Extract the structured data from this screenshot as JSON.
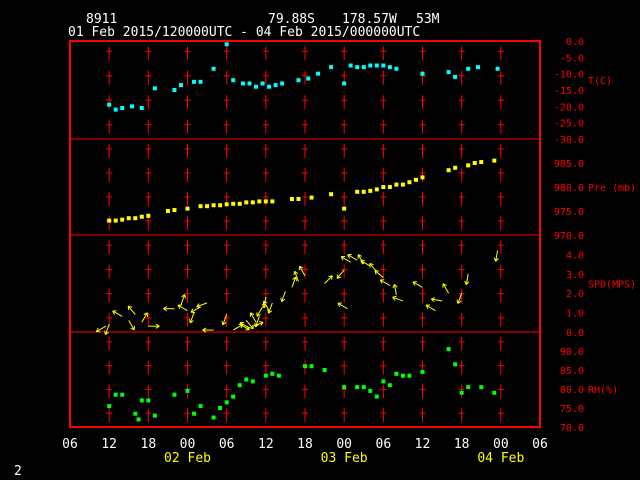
{
  "header": {
    "station": "8911",
    "lat": "79.88S",
    "lon": "178.57W",
    "elev": "53M",
    "range": "01 Feb 2015/120000UTC - 04 Feb 2015/000000UTC"
  },
  "footer": {
    "page": "2"
  },
  "colors": {
    "text": "#ffffff",
    "frame": "#ff0000",
    "label": "#ff0000",
    "date": "#ffff00",
    "temp": "#00ffff",
    "pres": "#ffff00",
    "wind": "#ffff00",
    "rh": "#00ff00"
  },
  "chart_data": {
    "type": "scatter",
    "x_ticks": [
      "06",
      "12",
      "18",
      "00",
      "06",
      "12",
      "18",
      "00",
      "06",
      "12",
      "18",
      "00",
      "06"
    ],
    "day_labels": [
      "02 Feb",
      "03 Feb",
      "04 Feb"
    ],
    "panels": [
      {
        "key": "temp",
        "label": "T(C)",
        "ylim": [
          -30,
          0
        ],
        "yticks": [
          "0.0",
          "-5.0",
          "-10.0",
          "-15.0",
          "-20.0",
          "-25.0",
          "-30.0"
        ],
        "points": [
          [
            12,
            -19.5
          ],
          [
            13,
            -21
          ],
          [
            14,
            -20.5
          ],
          [
            15.5,
            -20
          ],
          [
            17,
            -20.5
          ],
          [
            19,
            -14.5
          ],
          [
            22,
            -15
          ],
          [
            23,
            -13.5
          ],
          [
            25,
            -12.5
          ],
          [
            26,
            -12.5
          ],
          [
            28,
            -8.5
          ],
          [
            30,
            -1
          ],
          [
            31,
            -12
          ],
          [
            32.5,
            -13
          ],
          [
            33.5,
            -13
          ],
          [
            34.5,
            -14
          ],
          [
            35.5,
            -13
          ],
          [
            36.5,
            -14
          ],
          [
            37.5,
            -13.5
          ],
          [
            38.5,
            -13
          ],
          [
            41,
            -12
          ],
          [
            42.5,
            -11.5
          ],
          [
            44,
            -10
          ],
          [
            46,
            -8
          ],
          [
            48,
            -13
          ],
          [
            49,
            -7.5
          ],
          [
            50,
            -8
          ],
          [
            51,
            -8
          ],
          [
            52,
            -7.5
          ],
          [
            53,
            -7.5
          ],
          [
            54,
            -7.5
          ],
          [
            55,
            -8
          ],
          [
            56,
            -8.5
          ],
          [
            60,
            -10
          ],
          [
            64,
            -9.5
          ],
          [
            65,
            -11
          ],
          [
            67,
            -8.5
          ],
          [
            68.5,
            -8
          ],
          [
            71.5,
            -8.5
          ]
        ]
      },
      {
        "key": "pres",
        "label": "Pre (mb)",
        "ylim": [
          970,
          990
        ],
        "yticks": [
          "985.0",
          "980.0",
          "975.0",
          "970.0"
        ],
        "points": [
          [
            12,
            973
          ],
          [
            13,
            973
          ],
          [
            14,
            973.2
          ],
          [
            15,
            973.5
          ],
          [
            16,
            973.5
          ],
          [
            17,
            973.8
          ],
          [
            18,
            974
          ],
          [
            21,
            975
          ],
          [
            22,
            975.2
          ],
          [
            24,
            975.5
          ],
          [
            26,
            976
          ],
          [
            27,
            976
          ],
          [
            28,
            976.2
          ],
          [
            29,
            976.2
          ],
          [
            30,
            976.4
          ],
          [
            31,
            976.5
          ],
          [
            32,
            976.5
          ],
          [
            33,
            976.8
          ],
          [
            34,
            976.8
          ],
          [
            35,
            977
          ],
          [
            36,
            977
          ],
          [
            37,
            977
          ],
          [
            40,
            977.5
          ],
          [
            41,
            977.5
          ],
          [
            43,
            977.8
          ],
          [
            46,
            978.5
          ],
          [
            48,
            975.5
          ],
          [
            50,
            979
          ],
          [
            51,
            979
          ],
          [
            52,
            979.2
          ],
          [
            53,
            979.5
          ],
          [
            54,
            980
          ],
          [
            55,
            980
          ],
          [
            56,
            980.5
          ],
          [
            57,
            980.5
          ],
          [
            58,
            981
          ],
          [
            59,
            981.5
          ],
          [
            60,
            982
          ],
          [
            64,
            983.5
          ],
          [
            65,
            984
          ],
          [
            67,
            984.5
          ],
          [
            68,
            985
          ],
          [
            69,
            985.2
          ],
          [
            71,
            985.5
          ]
        ]
      },
      {
        "key": "wind",
        "label": "SPD(MPS)",
        "ylim": [
          0,
          5
        ],
        "yticks": [
          "4.0",
          "3.0",
          "2.0",
          "1.0",
          "0.0"
        ],
        "points": [
          [
            11.5,
            0.3,
            240
          ],
          [
            12,
            0.4,
            200
          ],
          [
            14,
            0.8,
            300
          ],
          [
            15,
            0.6,
            150
          ],
          [
            16,
            0.9,
            320
          ],
          [
            17,
            0.5,
            30
          ],
          [
            18,
            0.3,
            90
          ],
          [
            22,
            1.2,
            270
          ],
          [
            23,
            1.4,
            20
          ],
          [
            24,
            1.1,
            300
          ],
          [
            25,
            1.0,
            200
          ],
          [
            26,
            1.3,
            240
          ],
          [
            27,
            1.5,
            250
          ],
          [
            28,
            0.1,
            270
          ],
          [
            31,
            0.1,
            60
          ],
          [
            32,
            0.4,
            120
          ],
          [
            33,
            0.6,
            140
          ],
          [
            33.5,
            0.2,
            300
          ],
          [
            34,
            0.3,
            70
          ],
          [
            34.5,
            0.5,
            330
          ],
          [
            35,
            0.8,
            200
          ],
          [
            35.5,
            1.3,
            210
          ],
          [
            36,
            1.8,
            190
          ],
          [
            36.5,
            1.1,
            330
          ],
          [
            37,
            1.5,
            200
          ],
          [
            39,
            2.1,
            200
          ],
          [
            40,
            2.3,
            20
          ],
          [
            41,
            2.6,
            340
          ],
          [
            42,
            2.9,
            330
          ],
          [
            45,
            2.5,
            45
          ],
          [
            48,
            3.2,
            220
          ],
          [
            49,
            3.6,
            300
          ],
          [
            50,
            3.7,
            300
          ],
          [
            51,
            3.5,
            330
          ],
          [
            52,
            3.4,
            300
          ],
          [
            53,
            3.1,
            320
          ],
          [
            54,
            2.8,
            310
          ],
          [
            55,
            2.4,
            300
          ],
          [
            56,
            1.9,
            350
          ],
          [
            57,
            1.6,
            290
          ],
          [
            60,
            2.3,
            300
          ],
          [
            62,
            1.1,
            300
          ],
          [
            63,
            1.6,
            280
          ],
          [
            64,
            2.0,
            330
          ],
          [
            66,
            2.0,
            200
          ],
          [
            67,
            3.0,
            190
          ],
          [
            71.5,
            4.2,
            190
          ],
          [
            48.5,
            1.2,
            300
          ],
          [
            30,
            0.9,
            200
          ]
        ]
      },
      {
        "key": "rh",
        "label": "RH(%)",
        "ylim": [
          70,
          95
        ],
        "yticks": [
          "90.0",
          "85.0",
          "80.0",
          "75.0",
          "70.0"
        ],
        "points": [
          [
            12,
            75.5
          ],
          [
            13,
            78.5
          ],
          [
            14,
            78.5
          ],
          [
            16,
            73.5
          ],
          [
            16.5,
            72
          ],
          [
            17,
            77
          ],
          [
            18,
            77
          ],
          [
            19,
            73
          ],
          [
            22,
            78.5
          ],
          [
            24,
            79.5
          ],
          [
            25,
            73.5
          ],
          [
            26,
            75.5
          ],
          [
            28,
            72.5
          ],
          [
            29,
            75
          ],
          [
            30,
            76.5
          ],
          [
            31,
            78
          ],
          [
            32,
            81
          ],
          [
            33,
            82.5
          ],
          [
            34,
            82
          ],
          [
            36,
            83.5
          ],
          [
            37,
            84
          ],
          [
            38,
            83.5
          ],
          [
            42,
            86
          ],
          [
            43,
            86
          ],
          [
            45,
            85
          ],
          [
            48,
            80.5
          ],
          [
            50,
            80.5
          ],
          [
            51,
            80.5
          ],
          [
            52,
            79.5
          ],
          [
            53,
            78
          ],
          [
            54,
            82
          ],
          [
            55,
            81
          ],
          [
            56,
            84
          ],
          [
            57,
            83.5
          ],
          [
            58,
            83.5
          ],
          [
            60,
            84.5
          ],
          [
            64,
            90.5
          ],
          [
            65,
            86.5
          ],
          [
            66,
            79
          ],
          [
            67,
            80.5
          ],
          [
            69,
            80.5
          ],
          [
            71,
            79
          ]
        ]
      }
    ]
  }
}
